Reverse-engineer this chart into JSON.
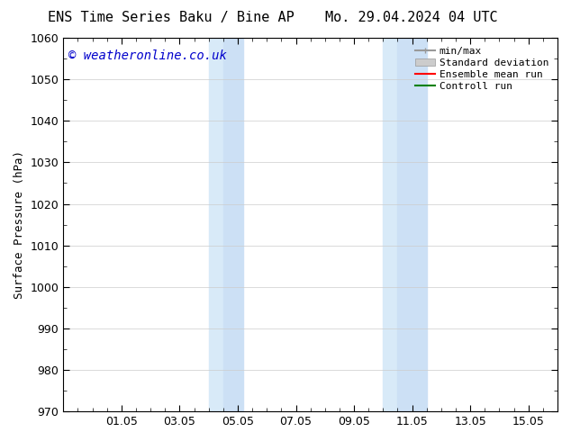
{
  "title_left": "ENS Time Series Baku / Bine AP",
  "title_right": "Mo. 29.04.2024 04 UTC",
  "ylabel": "Surface Pressure (hPa)",
  "ylim": [
    970,
    1060
  ],
  "yticks": [
    970,
    980,
    990,
    1000,
    1010,
    1020,
    1030,
    1040,
    1050,
    1060
  ],
  "xtick_labels": [
    "01.05",
    "03.05",
    "05.05",
    "07.05",
    "09.05",
    "11.05",
    "13.05",
    "15.05"
  ],
  "xtick_positions": [
    2,
    4,
    6,
    8,
    10,
    12,
    14,
    16
  ],
  "xlim": [
    0,
    17
  ],
  "shaded_regions": [
    {
      "xstart": 5.0,
      "xend": 5.5,
      "color": "#d8eaf8"
    },
    {
      "xstart": 5.5,
      "xend": 6.2,
      "color": "#cce0f5"
    },
    {
      "xstart": 11.0,
      "xend": 11.5,
      "color": "#d8eaf8"
    },
    {
      "xstart": 11.5,
      "xend": 12.5,
      "color": "#cce0f5"
    }
  ],
  "watermark": "© weatheronline.co.uk",
  "watermark_color": "#0000cc",
  "legend_entries": [
    {
      "label": "min/max",
      "color": "#999999"
    },
    {
      "label": "Standard deviation",
      "color": "#cccccc"
    },
    {
      "label": "Ensemble mean run",
      "color": "red"
    },
    {
      "label": "Controll run",
      "color": "green"
    }
  ],
  "bg_color": "#ffffff",
  "grid_color": "#cccccc",
  "axis_color": "#000000",
  "title_fontsize": 11,
  "label_fontsize": 9,
  "tick_fontsize": 9,
  "legend_fontsize": 8,
  "watermark_fontsize": 10
}
